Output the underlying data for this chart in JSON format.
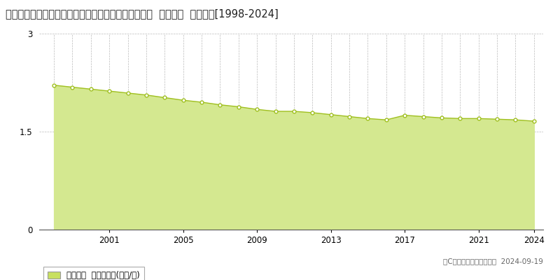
{
  "title": "福島県河沼郡柳津町大字細八字根柄巻乙１３８番３３  基準地価  地価推移[1998-2024]",
  "years": [
    1998,
    1999,
    2000,
    2001,
    2002,
    2003,
    2004,
    2005,
    2006,
    2007,
    2008,
    2009,
    2010,
    2011,
    2012,
    2013,
    2014,
    2015,
    2016,
    2017,
    2018,
    2019,
    2020,
    2021,
    2022,
    2023,
    2024
  ],
  "values": [
    2.21,
    2.18,
    2.15,
    2.12,
    2.09,
    2.06,
    2.02,
    1.98,
    1.95,
    1.91,
    1.88,
    1.84,
    1.81,
    1.81,
    1.79,
    1.76,
    1.73,
    1.7,
    1.68,
    1.75,
    1.73,
    1.71,
    1.7,
    1.7,
    1.69,
    1.68,
    1.66
  ],
  "line_color": "#a0c020",
  "fill_color": "#d4e890",
  "marker_face": "#ffffff",
  "marker_edge": "#a0c020",
  "ylim": [
    0,
    3
  ],
  "yticks": [
    0,
    1.5,
    3
  ],
  "grid_color": "#bbbbbb",
  "background_color": "#ffffff",
  "legend_label": "基準地価  平均坪単価(万円/坪)",
  "legend_color": "#c8e060",
  "copyright_text": "（C）土地価格ドットコム  2024-09-19",
  "title_fontsize": 10.5,
  "axis_fontsize": 8.5,
  "legend_fontsize": 8.5,
  "xtick_labels": [
    "2001",
    "2005",
    "2009",
    "2013",
    "2017",
    "2021",
    "2024"
  ],
  "xtick_positions": [
    2001,
    2005,
    2009,
    2013,
    2017,
    2021,
    2024
  ]
}
